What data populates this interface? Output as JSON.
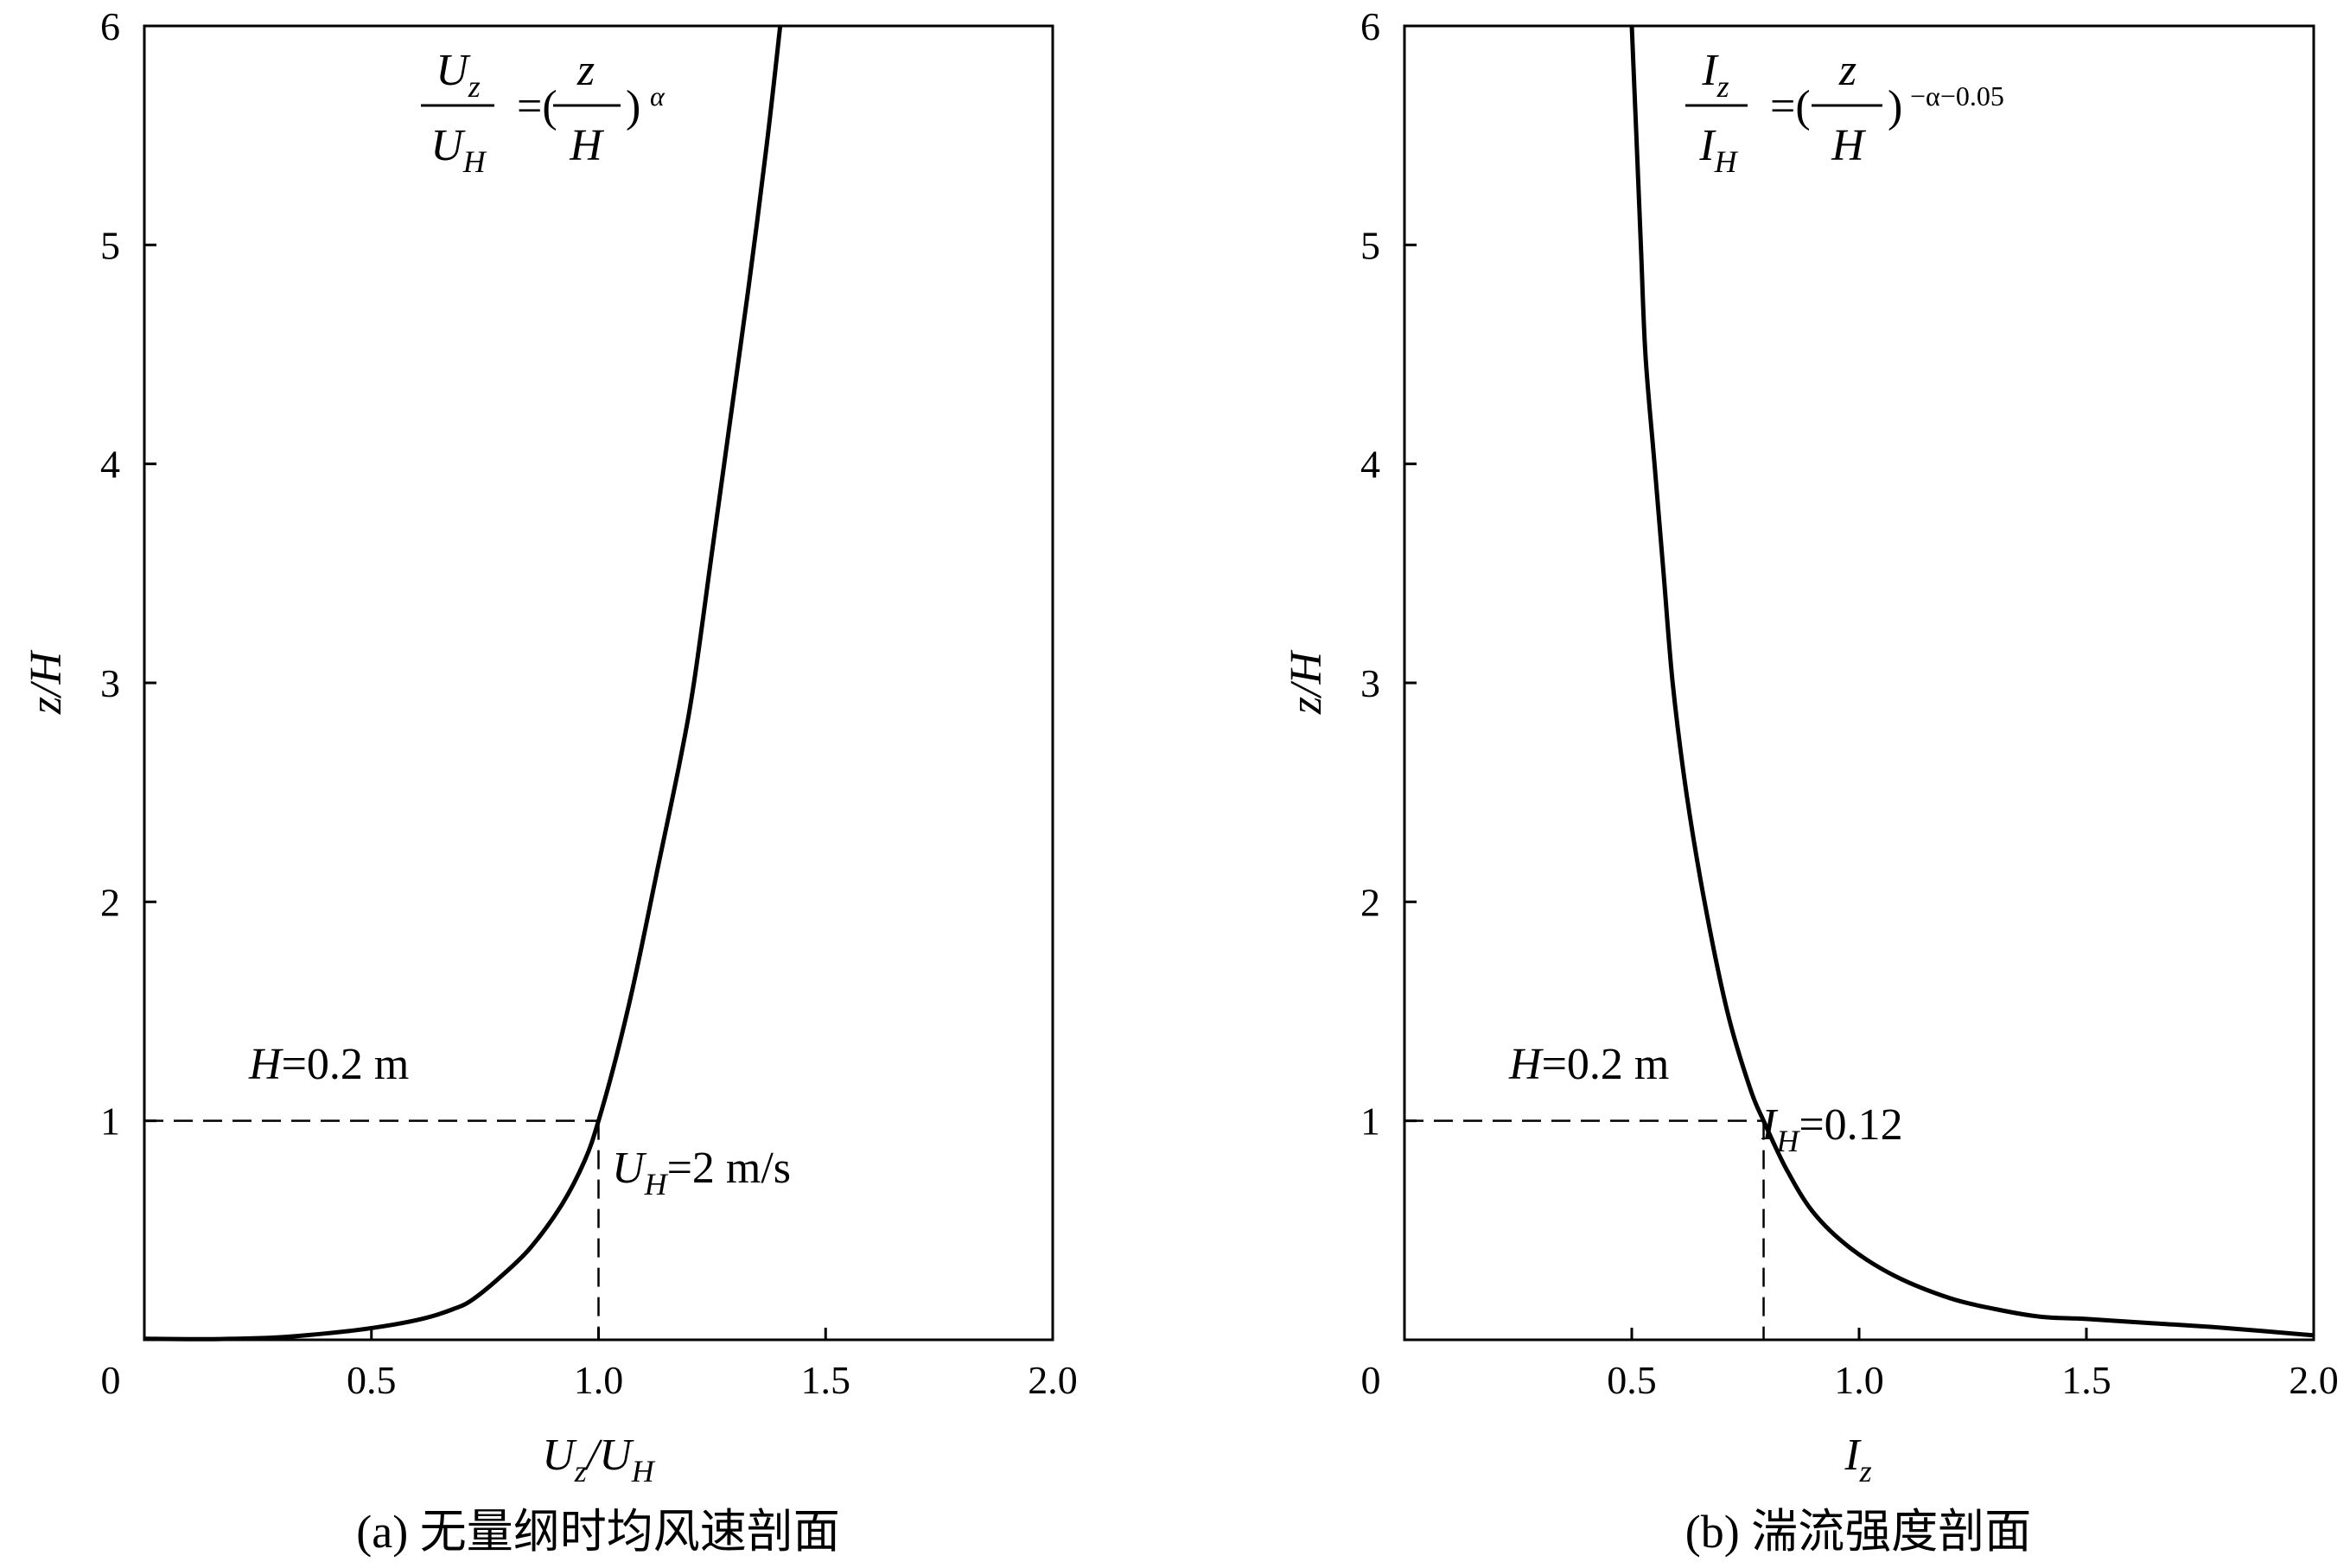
{
  "chart_data": [
    {
      "type": "line",
      "panel": "a",
      "caption": "(a) 无量纲时均风速剖面",
      "xlabel_main": "U",
      "xlabel_sub1": "z",
      "xlabel_slash": "/",
      "xlabel_main2": "U",
      "xlabel_sub2": "H",
      "ylabel": "z/H",
      "xlim": [
        0,
        2.0
      ],
      "ylim": [
        0,
        6
      ],
      "xticks": [
        "0",
        "0.5",
        "1.0",
        "1.5",
        "2.0"
      ],
      "yticks": [
        "1",
        "2",
        "3",
        "4",
        "5",
        "6"
      ],
      "equation": {
        "num_left": "U",
        "num_left_sub": "z",
        "den_left": "U",
        "den_left_sub": "H",
        "eq": "=(",
        "num_right": "z",
        "den_right": "H",
        "close": ")",
        "exp": "α"
      },
      "annotations": {
        "h_label_italic": "H",
        "h_label_rest": "=0.2 m",
        "uh_label_italic": "U",
        "uh_label_sub": "H",
        "uh_label_rest": "=2 m/s"
      },
      "reference": {
        "x": 1.0,
        "y": 1.0
      },
      "series": [
        {
          "x": [
            0.0,
            0.15,
            0.3,
            0.45,
            0.55,
            0.62,
            0.68,
            0.72,
            0.78,
            0.85,
            0.92,
            0.97,
            1.0,
            1.04,
            1.08,
            1.13,
            1.18,
            1.21,
            1.25,
            1.29,
            1.33,
            1.37,
            1.4
          ],
          "y": [
            0.005,
            0.003,
            0.012,
            0.04,
            0.07,
            0.1,
            0.14,
            0.18,
            0.28,
            0.42,
            0.62,
            0.82,
            1.0,
            1.3,
            1.65,
            2.15,
            2.65,
            3.0,
            3.6,
            4.2,
            4.8,
            5.45,
            6.0
          ]
        }
      ]
    },
    {
      "type": "line",
      "panel": "b",
      "caption": "(b) 湍流强度剖面",
      "xlabel_main": "I",
      "xlabel_sub1": "z",
      "ylabel": "z/H",
      "xlim": [
        0,
        2.0
      ],
      "ylim": [
        0,
        6
      ],
      "xticks": [
        "0",
        "0.5",
        "1.0",
        "1.5",
        "2.0"
      ],
      "yticks": [
        "1",
        "2",
        "3",
        "4",
        "5",
        "6"
      ],
      "equation": {
        "num_left": "I",
        "num_left_sub": "z",
        "den_left": "I",
        "den_left_sub": "H",
        "eq": "=(",
        "num_right": "z",
        "den_right": "H",
        "close": ")",
        "exp": "−α−0.05"
      },
      "annotations": {
        "h_label_italic": "H",
        "h_label_rest": "=0.2 m",
        "ih_label_italic": "I",
        "ih_label_sub": "H",
        "ih_label_rest": "=0.12"
      },
      "reference": {
        "x": 0.79,
        "y": 1.0
      },
      "series": [
        {
          "x": [
            0.5,
            0.51,
            0.52,
            0.53,
            0.55,
            0.57,
            0.59,
            0.62,
            0.66,
            0.71,
            0.76,
            0.79,
            0.84,
            0.9,
            0.98,
            1.08,
            1.2,
            1.3,
            1.4,
            1.5,
            1.65,
            1.8,
            2.0
          ],
          "y": [
            6.0,
            5.5,
            5.0,
            4.5,
            4.0,
            3.5,
            3.0,
            2.5,
            2.0,
            1.5,
            1.15,
            1.0,
            0.78,
            0.58,
            0.42,
            0.29,
            0.19,
            0.14,
            0.105,
            0.095,
            0.075,
            0.055,
            0.02
          ]
        }
      ]
    }
  ]
}
